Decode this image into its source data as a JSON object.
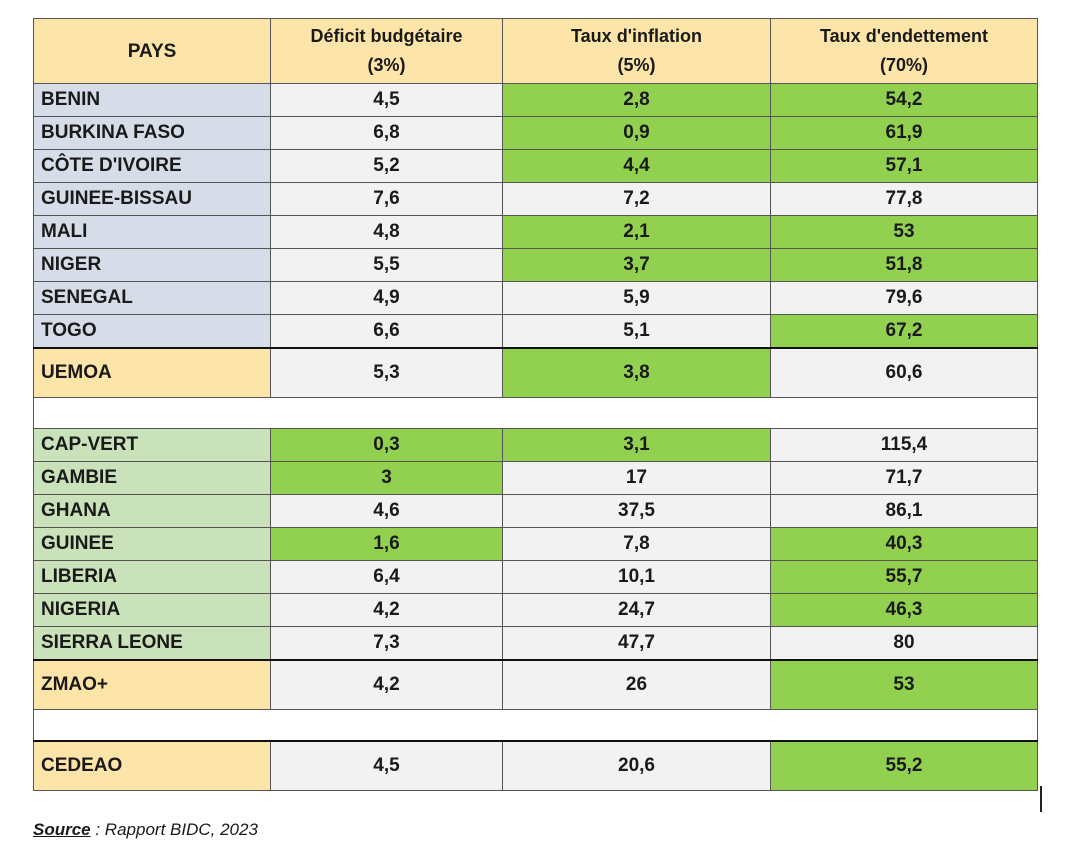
{
  "header": {
    "pays": "PAYS",
    "col1_line1": "Déficit budgétaire",
    "col1_line2": "(3%)",
    "col2_line1": "Taux d'inflation",
    "col2_line2": "(5%)",
    "col3_line1": "Taux d'endettement",
    "col3_line2": "(70%)"
  },
  "uemoa_rows": [
    {
      "pays": "BENIN",
      "deficit": "4,5",
      "inflation": "2,8",
      "dette": "54,2"
    },
    {
      "pays": "BURKINA FASO",
      "deficit": "6,8",
      "inflation": "0,9",
      "dette": "61,9"
    },
    {
      "pays": "CÔTE D'IVOIRE",
      "deficit": "5,2",
      "inflation": "4,4",
      "dette": "57,1"
    },
    {
      "pays": "GUINEE-BISSAU",
      "deficit": "7,6",
      "inflation": "7,2",
      "dette": "77,8"
    },
    {
      "pays": "MALI",
      "deficit": "4,8",
      "inflation": "2,1",
      "dette": "53"
    },
    {
      "pays": "NIGER",
      "deficit": "5,5",
      "inflation": "3,7",
      "dette": "51,8"
    },
    {
      "pays": "SENEGAL",
      "deficit": "4,9",
      "inflation": "5,9",
      "dette": "79,6"
    },
    {
      "pays": "TOGO",
      "deficit": "6,6",
      "inflation": "5,1",
      "dette": "67,2"
    }
  ],
  "uemoa_total": {
    "pays": "UEMOA",
    "deficit": "5,3",
    "inflation": "3,8",
    "dette": "60,6"
  },
  "zmao_rows": [
    {
      "pays": "CAP-VERT",
      "deficit": "0,3",
      "inflation": "3,1",
      "dette": "115,4"
    },
    {
      "pays": "GAMBIE",
      "deficit": "3",
      "inflation": "17",
      "dette": "71,7"
    },
    {
      "pays": "GHANA",
      "deficit": "4,6",
      "inflation": "37,5",
      "dette": "86,1"
    },
    {
      "pays": "GUINEE",
      "deficit": "1,6",
      "inflation": "7,8",
      "dette": "40,3"
    },
    {
      "pays": "LIBERIA",
      "deficit": "6,4",
      "inflation": "10,1",
      "dette": "55,7"
    },
    {
      "pays": "NIGERIA",
      "deficit": "4,2",
      "inflation": "24,7",
      "dette": "46,3"
    },
    {
      "pays": "SIERRA LEONE",
      "deficit": "7,3",
      "inflation": "47,7",
      "dette": "80"
    }
  ],
  "zmao_total": {
    "pays": "ZMAO+",
    "deficit": "4,2",
    "inflation": "26",
    "dette": "53"
  },
  "cedeao_total": {
    "pays": "CEDEAO",
    "deficit": "4,5",
    "inflation": "20,6",
    "dette": "55,2"
  },
  "source": {
    "label": "Source",
    "text": " : Rapport BIDC, 2023"
  },
  "colors": {
    "green": "#92d050",
    "grey": "#f2f2f2",
    "header": "#fde4a8",
    "blue_grey": "#d6dde8",
    "light_green": "#c9e2b9"
  }
}
